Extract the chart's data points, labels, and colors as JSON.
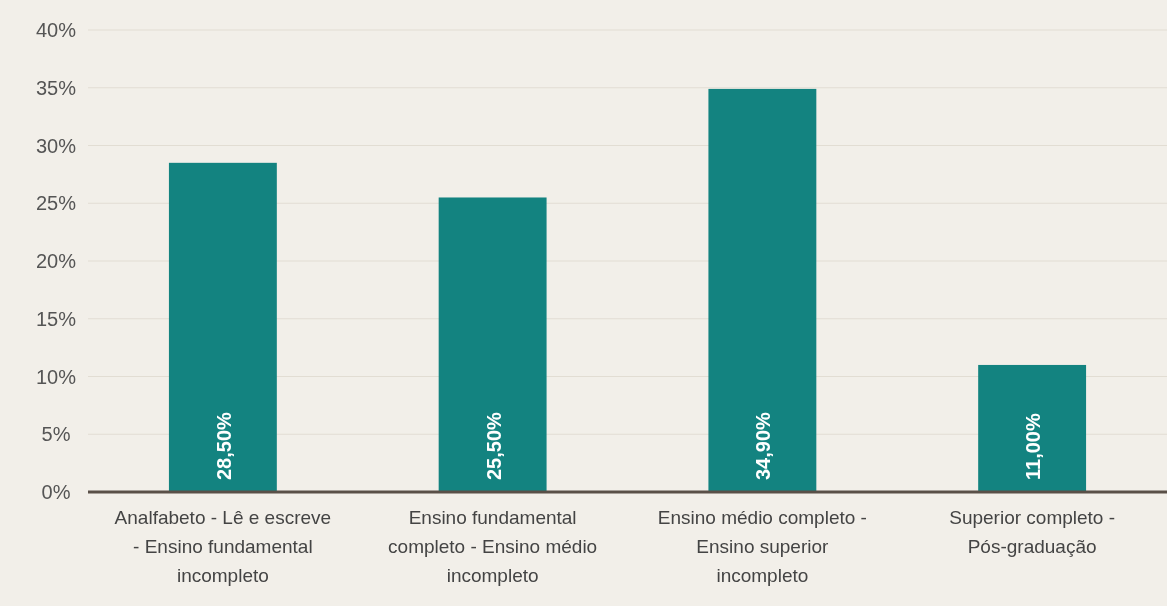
{
  "chart_data": {
    "type": "bar",
    "categories": [
      "Analfabeto - Lê e escreve - Ensino fundamental incompleto",
      "Ensino fundamental completo - Ensino médio incompleto",
      "Ensino médio completo - Ensino superior incompleto",
      "Superior completo - Pós-graduação"
    ],
    "values": [
      28.5,
      25.5,
      34.9,
      11.0
    ],
    "value_labels": [
      "28,50%",
      "25,50%",
      "34,90%",
      "11,00%"
    ],
    "color": "#138380",
    "ylim": [
      0,
      40
    ],
    "yticks": [
      {
        "value": 0,
        "label": "0%"
      },
      {
        "value": 5,
        "label": "5%"
      },
      {
        "value": 10,
        "label": "10%"
      },
      {
        "value": 15,
        "label": "15%"
      },
      {
        "value": 20,
        "label": "20%"
      },
      {
        "value": 25,
        "label": "25%"
      },
      {
        "value": 30,
        "label": "30%"
      },
      {
        "value": 35,
        "label": "35%"
      },
      {
        "value": 40,
        "label": "40%"
      }
    ],
    "grid": "y"
  }
}
